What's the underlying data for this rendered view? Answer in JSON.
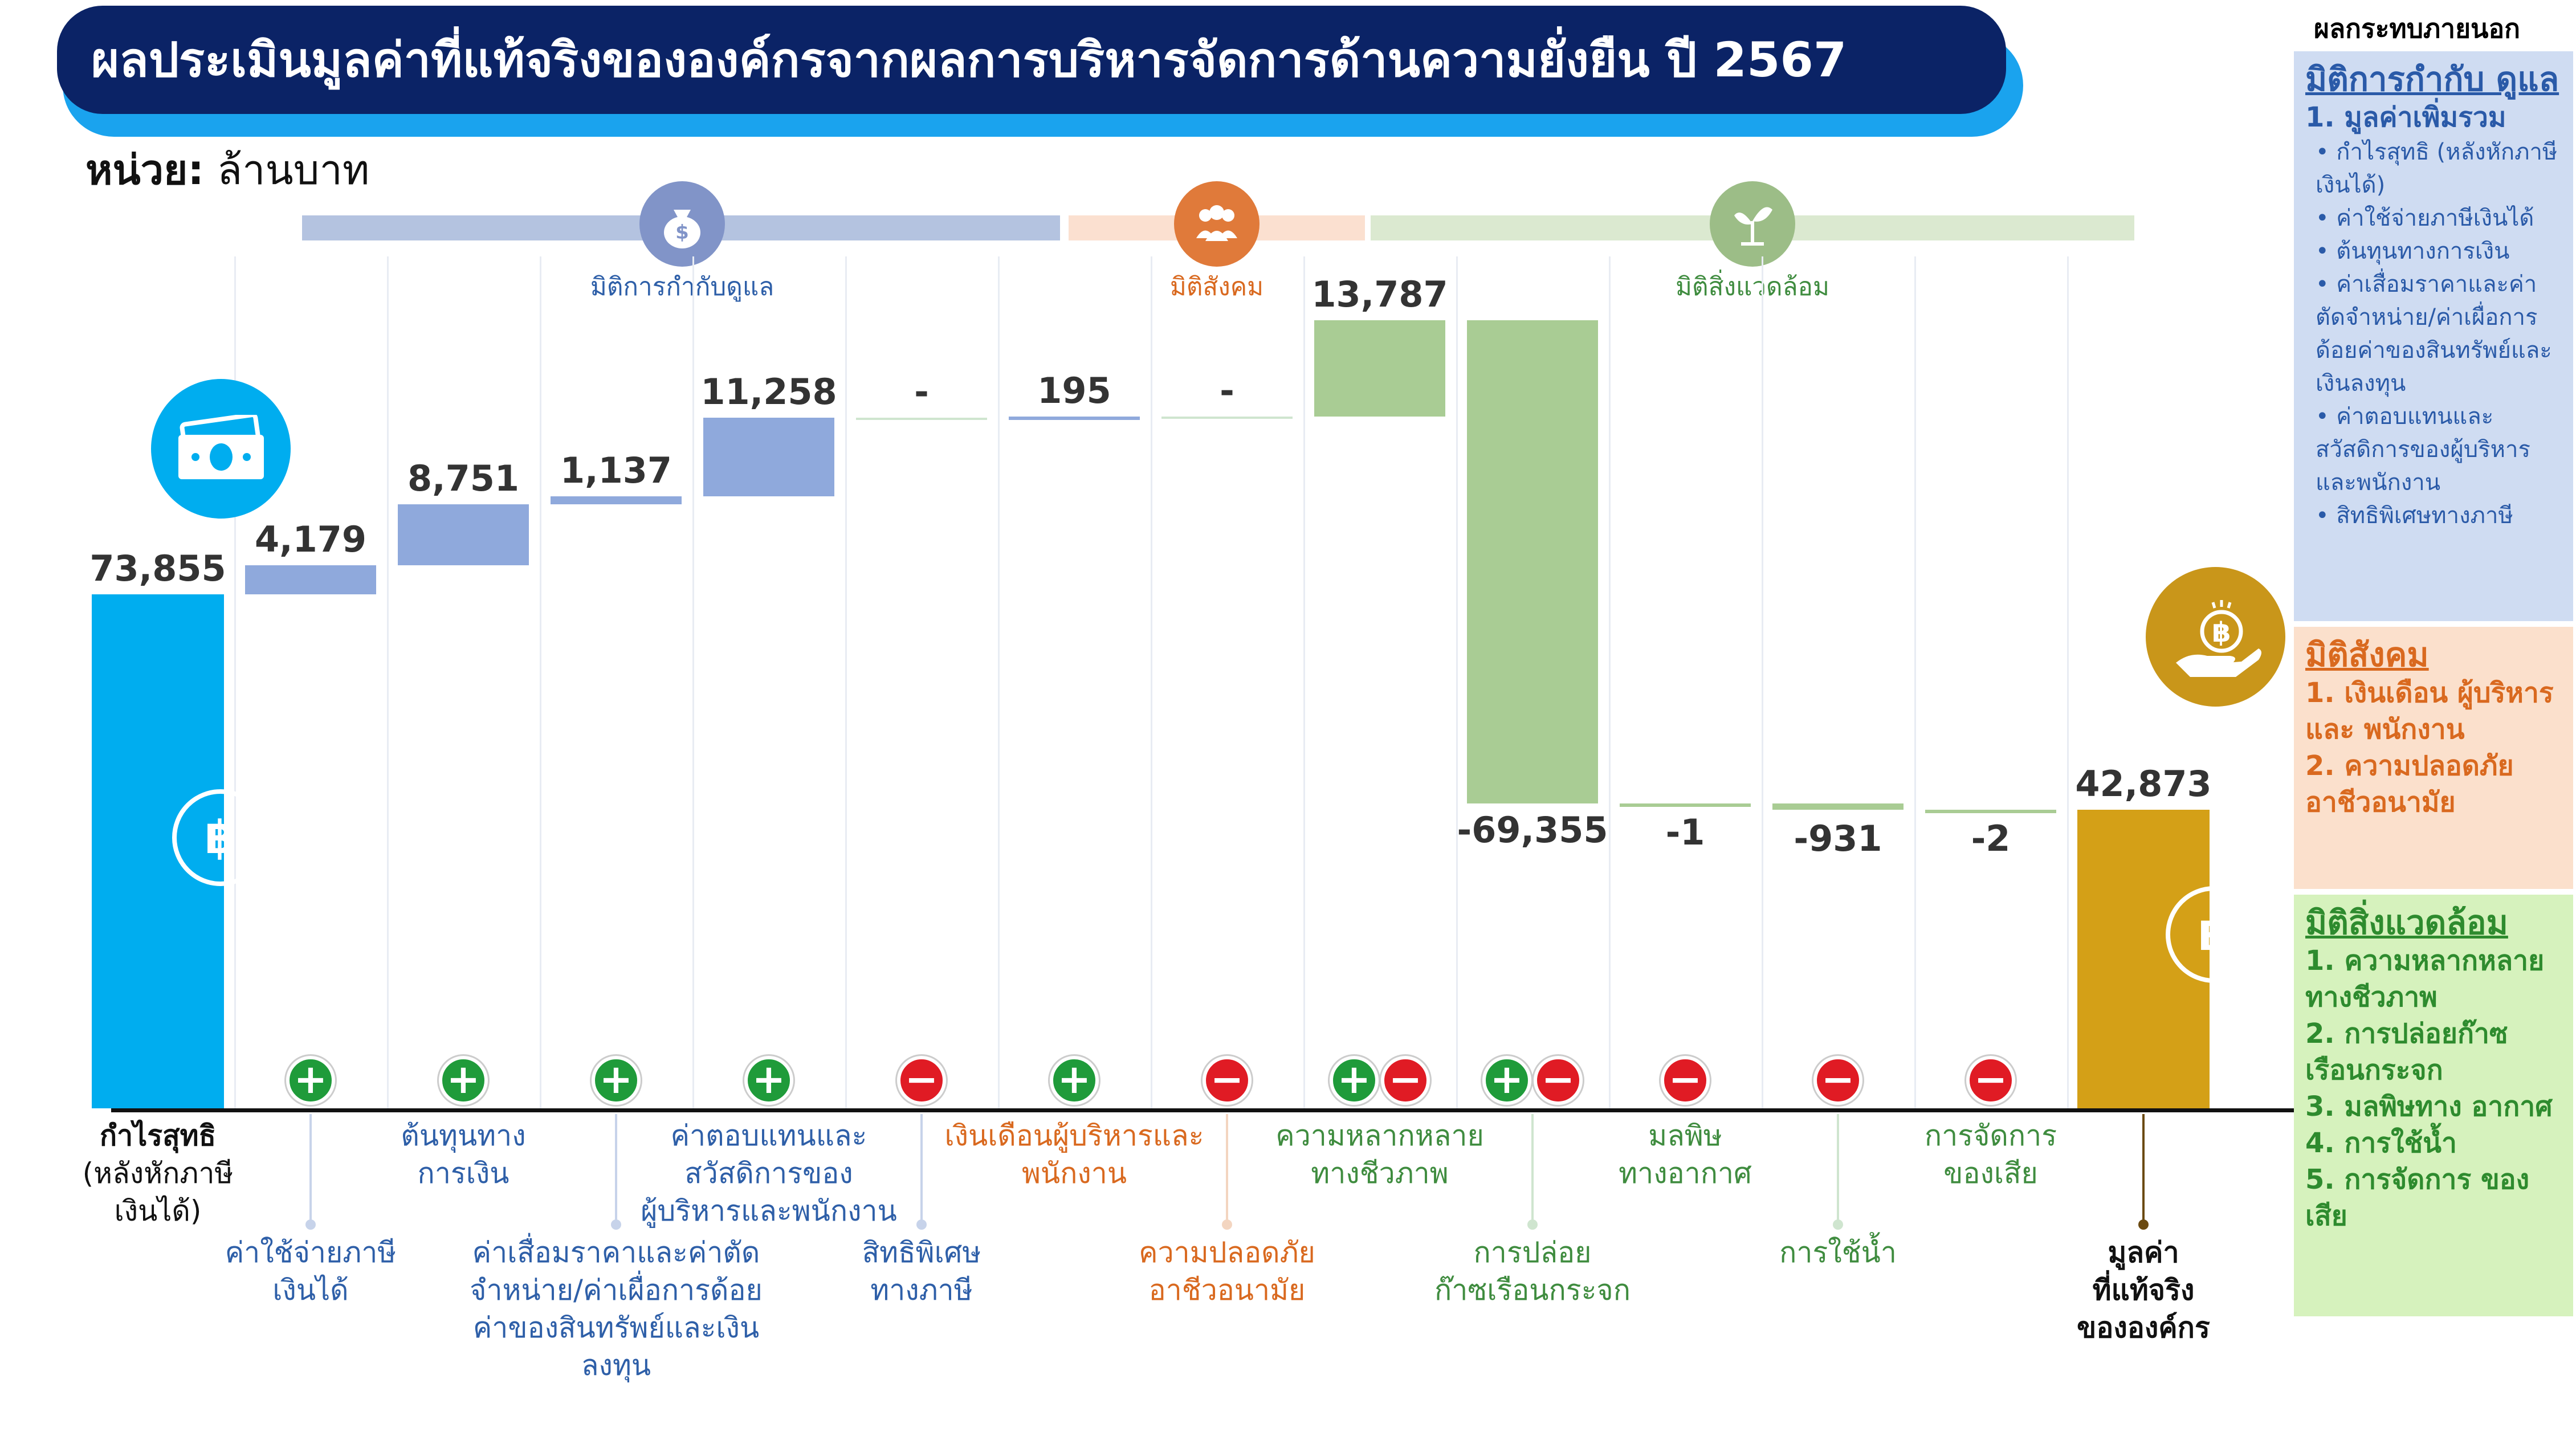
{
  "title": "ผลประเมินมูลค่าที่แท้จริงขององค์กรจากผลการบริหารจัดการด้านความยั่งยืน ปี 2567",
  "unit_label": "หน่วย:",
  "unit_value": "ล้านบาท",
  "external_impact_heading": "ผลกระทบภายนอก",
  "categories": {
    "governance": {
      "label": "มิติการกำกับดูแล",
      "color": "#b4c3e0",
      "icon_color": "#8194c8",
      "icon": "money-bag-icon"
    },
    "social": {
      "label": "มิติสังคม",
      "color": "#fbe0d0",
      "icon_color": "#e07a3a",
      "icon": "people-icon"
    },
    "environment": {
      "label": "มิติสิ่งแวดล้อม",
      "color": "#dbe9d0",
      "icon_color": "#9cbd87",
      "icon": "plant-icon"
    }
  },
  "signs": [
    "+",
    "+",
    "+",
    "+",
    "−",
    "+",
    "−",
    "+−",
    "+−",
    "−",
    "−",
    "−"
  ],
  "bar_labels": [
    {
      "lines": [
        "กำไรสุทธิ",
        "(หลังหักภาษี",
        "เงินได้)"
      ],
      "color": "#111111",
      "pos": "top",
      "bold_first": true
    },
    {
      "lines": [
        "ค่าใช้จ่ายภาษี",
        "เงินได้"
      ],
      "color": "#2e5fa8",
      "pos": "bottom"
    },
    {
      "lines": [
        "ต้นทุนทาง",
        "การเงิน"
      ],
      "color": "#2e5fa8",
      "pos": "top"
    },
    {
      "lines": [
        "ค่าเสื่อมราคาและค่าตัด",
        "จำหน่าย/ค่าเผื่อการด้อย",
        "ค่าของสินทรัพย์และเงิน",
        "ลงทุน"
      ],
      "color": "#2e5fa8",
      "pos": "bottom"
    },
    {
      "lines": [
        "ค่าตอบแทนและ",
        "สวัสดิการของ",
        "ผู้บริหารและพนักงาน"
      ],
      "color": "#2e5fa8",
      "pos": "top"
    },
    {
      "lines": [
        "สิทธิพิเศษ",
        "ทางภาษี"
      ],
      "color": "#2e5fa8",
      "pos": "bottom"
    },
    {
      "lines": [
        "เงินเดือนผู้บริหารและ",
        "พนักงาน"
      ],
      "color": "#d9691f",
      "pos": "top"
    },
    {
      "lines": [
        "ความปลอดภัย",
        "อาชีวอนามัย"
      ],
      "color": "#d9691f",
      "pos": "bottom"
    },
    {
      "lines": [
        "ความหลากหลาย",
        "ทางชีวภาพ"
      ],
      "color": "#3f8c3f",
      "pos": "top"
    },
    {
      "lines": [
        "การปล่อย",
        "ก๊าซเรือนกระจก"
      ],
      "color": "#3f8c3f",
      "pos": "bottom"
    },
    {
      "lines": [
        "มลพิษ",
        "ทางอากาศ"
      ],
      "color": "#3f8c3f",
      "pos": "top"
    },
    {
      "lines": [
        "การใช้น้ำ"
      ],
      "color": "#3f8c3f",
      "pos": "bottom"
    },
    {
      "lines": [
        "การจัดการ",
        "ของเสีย"
      ],
      "color": "#3f8c3f",
      "pos": "top"
    },
    {
      "lines": [
        "มูลค่า",
        "ที่แท้จริง",
        "ขององค์กร"
      ],
      "color": "#111111",
      "pos": "bottom",
      "bold_all": true
    }
  ],
  "panel": {
    "governance": {
      "heading": "มิติการกำกับ ดูแล",
      "item": "1. มูลค่าเพิ่มรวม",
      "subs": [
        "กำไรสุทธิ (หลังหักภาษีเงินได้)",
        "ค่าใช้จ่ายภาษีเงินได้",
        "ต้นทุนทางการเงิน",
        "ค่าเสื่อมราคาและค่าตัดจำหน่าย/ค่าเผื่อการด้อยค่าของสินทรัพย์และเงินลงทุน",
        "ค่าตอบแทนและสวัสดิการของผู้บริหารและพนักงาน",
        "สิทธิพิเศษทางภาษี"
      ],
      "bg": "#cfdcf2",
      "fg": "#2a5aa8"
    },
    "social": {
      "heading": "มิติสังคม",
      "items": [
        "1. เงินเดือน ผู้บริหารและ พนักงาน",
        "2. ความปลอดภัย อาชีวอนามัย"
      ],
      "bg": "#fbe0cc",
      "fg": "#d9691f"
    },
    "environment": {
      "heading": "มิติสิ่งแวดล้อม",
      "items": [
        "1.  ความหลากหลาย ทางชีวภาพ",
        "2. การปล่อยก๊าซ เรือนกระจก",
        "3. มลพิษทาง อากาศ",
        "4. การใช้น้ำ",
        "5. การจัดการ ของเสีย"
      ],
      "bg": "#d6f2bd",
      "fg": "#2e8b2e"
    }
  },
  "chart_data": {
    "type": "bar",
    "subtype": "waterfall",
    "title": "ผลประเมินมูลค่าที่แท้จริงขององค์กรจากผลการบริหารจัดการด้านความยั่งยืน ปี 2567",
    "unit": "ล้านบาท",
    "categories": [
      "กำไรสุทธิ (หลังหักภาษีเงินได้)",
      "ค่าใช้จ่ายภาษีเงินได้",
      "ต้นทุนทางการเงิน",
      "ค่าเสื่อมราคาและค่าตัดจำหน่าย/ค่าเผื่อการด้อยค่าของสินทรัพย์และเงินลงทุน",
      "ค่าตอบแทนและสวัสดิการของผู้บริหารและพนักงาน",
      "สิทธิพิเศษทางภาษี",
      "เงินเดือนผู้บริหารและพนักงาน",
      "ความปลอดภัยอาชีวอนามัย",
      "ความหลากหลายทางชีวภาพ",
      "การปล่อยก๊าซเรือนกระจก",
      "มลพิษทางอากาศ",
      "การใช้น้ำ",
      "การจัดการของเสีย",
      "มูลค่าที่แท้จริงขององค์กร"
    ],
    "values": [
      73855,
      4179,
      8751,
      1137,
      11258,
      0,
      195,
      0,
      13787,
      -69355,
      -1,
      -931,
      -2,
      42873
    ],
    "value_labels": [
      "73,855",
      "4,179",
      "8,751",
      "1,137",
      "11,258",
      "-",
      "195",
      "-",
      "13,787",
      "-69,355",
      "-1",
      "-931",
      "-2",
      "42,873"
    ],
    "kinds": [
      "total",
      "delta",
      "delta",
      "delta",
      "delta",
      "delta",
      "delta",
      "delta",
      "delta",
      "delta",
      "delta",
      "delta",
      "delta",
      "total"
    ],
    "groups": [
      "base",
      "governance",
      "governance",
      "governance",
      "governance",
      "governance",
      "social",
      "social",
      "environment",
      "environment",
      "environment",
      "environment",
      "environment",
      "result"
    ],
    "colors": {
      "base": "#00adef",
      "governance": "#8fa9dc",
      "social": "#8fa9dc",
      "environment": "#a9cc94",
      "result": "#d4a017"
    },
    "ylim": [
      0,
      115000
    ],
    "grid": false
  }
}
